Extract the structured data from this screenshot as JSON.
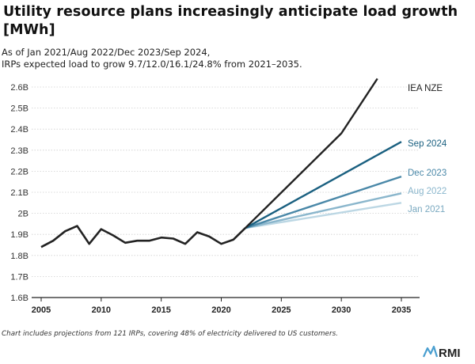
{
  "chart_data": {
    "type": "line",
    "title": "Utility resource plans increasingly anticipate load growth [MWh]",
    "subtitle": [
      "As of Jan 2021/Aug 2022/Dec 2023/Sep 2024,",
      "IRPs expected load to grow 9.7/12.0/16.1/24.8% from 2021–2035."
    ],
    "xlabel": "",
    "ylabel": "",
    "xlim": [
      2005,
      2035
    ],
    "ylim": [
      1.6,
      2.6
    ],
    "xticks": [
      "2005",
      "2010",
      "2015",
      "2020",
      "2025",
      "2030",
      "2035"
    ],
    "yticks": [
      "1.6B",
      "1.7B",
      "1.8B",
      "1.9B",
      "2B",
      "2.1B",
      "2.2B",
      "2.3B",
      "2.4B",
      "2.5B",
      "2.6B"
    ],
    "historical": {
      "x": [
        2005,
        2006,
        2007,
        2008,
        2009,
        2010,
        2011,
        2012,
        2013,
        2014,
        2015,
        2016,
        2017,
        2018,
        2019,
        2020,
        2021,
        2022
      ],
      "values": [
        1.84,
        1.87,
        1.915,
        1.94,
        1.855,
        1.925,
        1.895,
        1.86,
        1.87,
        1.87,
        1.885,
        1.88,
        1.855,
        1.91,
        1.89,
        1.855,
        1.875,
        1.93
      ]
    },
    "series": [
      {
        "name": "IEA NZE",
        "color": "#222222",
        "x": [
          2022,
          2026,
          2030,
          2033
        ],
        "values": [
          1.93,
          2.155,
          2.38,
          2.64
        ]
      },
      {
        "name": "Sep 2024",
        "color": "#1a6080",
        "x": [
          2022,
          2035
        ],
        "values": [
          1.93,
          2.34
        ]
      },
      {
        "name": "Dec 2023",
        "color": "#4a88a8",
        "x": [
          2022,
          2035
        ],
        "values": [
          1.93,
          2.175
        ]
      },
      {
        "name": "Aug 2022",
        "color": "#8ab6cc",
        "x": [
          2022,
          2035
        ],
        "values": [
          1.93,
          2.095
        ]
      },
      {
        "name": "Jan 2021",
        "color": "#bcd7e4",
        "x": [
          2022,
          2035
        ],
        "values": [
          1.93,
          2.05
        ]
      }
    ],
    "footnote": "Chart includes projections from 121 IRPs, covering 48% of electricity delivered to US customers.",
    "logo": "RMI"
  }
}
